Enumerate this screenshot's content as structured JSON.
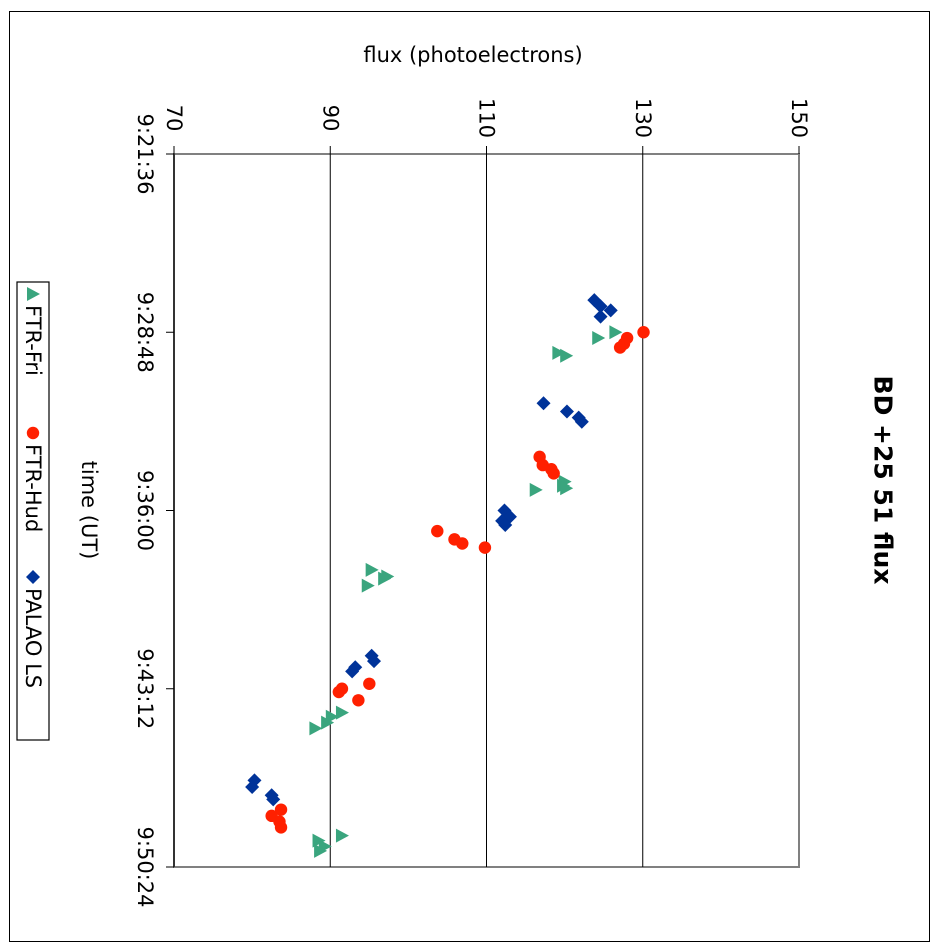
{
  "chart_data": {
    "type": "scatter",
    "orientation": "rotated 90 degrees clockwise",
    "title": "BD +25 51 flux",
    "xlabel": "time (UT)",
    "ylabel": "flux (photoelectrons)",
    "x_ticks": [
      "9:21:36",
      "9:28:48",
      "9:36:00",
      "9:43:12",
      "9:50:24"
    ],
    "y_ticks": [
      "70",
      "90",
      "110",
      "130",
      "150"
    ],
    "xlim": [
      "9:21:36",
      "9:50:24"
    ],
    "ylim": [
      70,
      150
    ],
    "grid": "horizontal value gridlines",
    "legend_position": "bottom",
    "series": [
      {
        "name": "FTR-Fri",
        "marker": "triangle",
        "color": "#3aa57e",
        "points": [
          [
            "9:28:48",
            126.5
          ],
          [
            "9:29:02",
            124.3
          ],
          [
            "9:29:38",
            119.2
          ],
          [
            "9:29:45",
            120.2
          ],
          [
            "9:34:50",
            120.0
          ],
          [
            "9:35:00",
            119.8
          ],
          [
            "9:35:06",
            120.2
          ],
          [
            "9:35:10",
            116.3
          ],
          [
            "9:38:24",
            95.3
          ],
          [
            "9:38:40",
            97.3
          ],
          [
            "9:38:45",
            96.9
          ],
          [
            "9:39:02",
            94.8
          ],
          [
            "9:44:10",
            91.5
          ],
          [
            "9:44:20",
            90.2
          ],
          [
            "9:44:34",
            89.6
          ],
          [
            "9:44:48",
            88.1
          ],
          [
            "9:49:08",
            91.5
          ],
          [
            "9:49:20",
            88.5
          ],
          [
            "9:49:34",
            89.3
          ],
          [
            "9:49:45",
            88.7
          ]
        ]
      },
      {
        "name": "FTR-Hud",
        "marker": "circle",
        "color": "#ff2000",
        "points": [
          [
            "9:28:48",
            130.1
          ],
          [
            "9:29:02",
            128.0
          ],
          [
            "9:29:16",
            127.6
          ],
          [
            "9:29:25",
            127.1
          ],
          [
            "9:33:50",
            116.8
          ],
          [
            "9:34:10",
            117.2
          ],
          [
            "9:34:20",
            118.3
          ],
          [
            "9:34:30",
            118.6
          ],
          [
            "9:36:50",
            103.7
          ],
          [
            "9:37:10",
            105.9
          ],
          [
            "9:37:20",
            106.9
          ],
          [
            "9:37:30",
            109.8
          ],
          [
            "9:43:00",
            95.0
          ],
          [
            "9:43:12",
            91.5
          ],
          [
            "9:43:20",
            91.1
          ],
          [
            "9:43:40",
            93.6
          ],
          [
            "9:48:05",
            83.7
          ],
          [
            "9:48:20",
            82.5
          ],
          [
            "9:48:34",
            83.5
          ],
          [
            "9:48:48",
            83.7
          ]
        ]
      },
      {
        "name": "PALAO LS",
        "marker": "diamond",
        "color": "#003399",
        "points": [
          [
            "9:27:30",
            123.8
          ],
          [
            "9:27:45",
            124.6
          ],
          [
            "9:27:55",
            125.9
          ],
          [
            "9:28:10",
            124.6
          ],
          [
            "9:31:40",
            117.3
          ],
          [
            "9:32:00",
            120.3
          ],
          [
            "9:32:15",
            121.8
          ],
          [
            "9:32:25",
            122.2
          ],
          [
            "9:36:00",
            112.3
          ],
          [
            "9:36:15",
            113.0
          ],
          [
            "9:36:25",
            112.0
          ],
          [
            "9:36:35",
            112.4
          ],
          [
            "9:41:52",
            95.3
          ],
          [
            "9:42:05",
            95.6
          ],
          [
            "9:42:20",
            93.2
          ],
          [
            "9:42:30",
            92.8
          ],
          [
            "9:46:54",
            80.3
          ],
          [
            "9:47:10",
            80.0
          ],
          [
            "9:47:30",
            82.5
          ],
          [
            "9:47:40",
            82.7
          ]
        ]
      }
    ]
  }
}
